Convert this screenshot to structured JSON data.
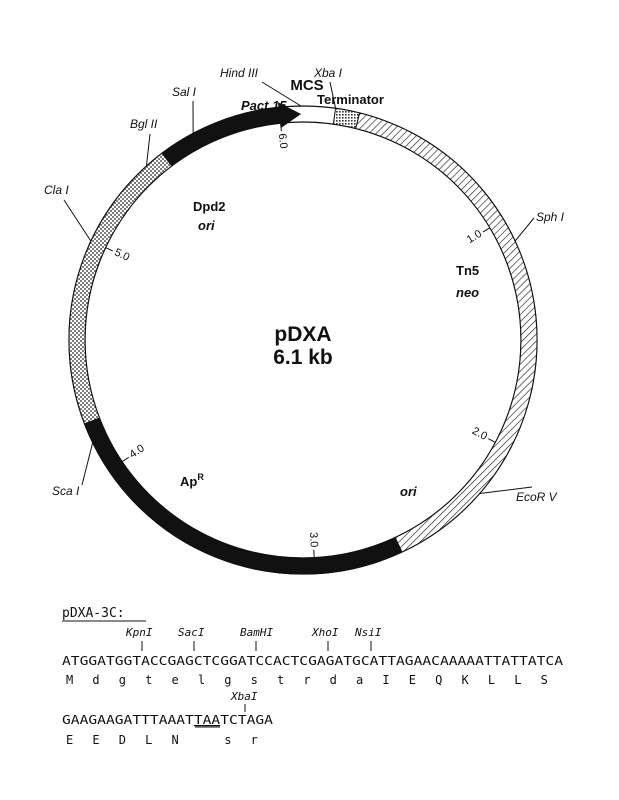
{
  "plasmid": {
    "name": "pDXA",
    "size": "6.1 kb",
    "total_kb": 6.1,
    "scale_marks": [
      "6.0",
      "1.0",
      "2.0",
      "3.0",
      "4.0",
      "5.0"
    ],
    "scale_positions_kb": [
      6.0,
      1.0,
      2.0,
      3.0,
      4.0,
      5.0
    ]
  },
  "features": {
    "mcs": "MCS",
    "terminator": "Terminator",
    "pact15": "Pact 15",
    "dpd2": "Dpd2",
    "dpd2_ori": "ori",
    "tn5": "Tn5",
    "neo": "neo",
    "ori": "ori",
    "apr": "Ap",
    "apr_sup": "R"
  },
  "sites": {
    "hindiii": "Hind III",
    "xbai": "Xba I",
    "sali": "Sal I",
    "bglii": "Bgl II",
    "clai": "Cla I",
    "sphi": "Sph I",
    "ecorv": "EcoR V",
    "scai": "Sca I"
  },
  "sequence": {
    "title": "pDXA-3C:",
    "line1_sites": [
      "KpnI",
      "SacI",
      "BamHI",
      "XhoI",
      "NsiI"
    ],
    "line1": "ATGGATGGTACCGAGCTCGGATCCACTCGAGATGCATTAGAACAAAAATTATTATCA",
    "line1_aa": [
      "M",
      "d",
      "g",
      "t",
      "e",
      "l",
      "g",
      "s",
      "t",
      "r",
      "d",
      "a",
      "I",
      "E",
      "Q",
      "K",
      "L",
      "L",
      "S"
    ],
    "line2_site": "XbaI",
    "line2_pre": "GAAGAAGATTTAAAT",
    "line2_stop": "TAA",
    "line2_post": "TCTAGA",
    "line2_aa": [
      "E",
      "E",
      "D",
      "L",
      "N",
      "s",
      "r"
    ]
  }
}
